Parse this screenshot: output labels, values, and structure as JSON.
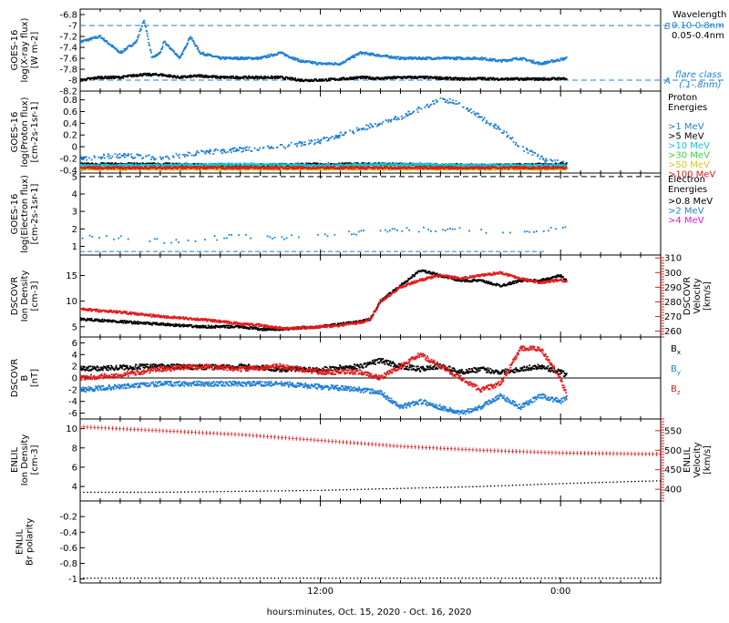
{
  "colors": {
    "black": "#000000",
    "blue": "#1f7fd6",
    "cyan": "#19c3d6",
    "green": "#3ccf3c",
    "yellow": "#d6c81a",
    "orange": "#f28a1a",
    "red": "#e21a1a",
    "magenta": "#d61ad6"
  },
  "x_axis": {
    "label": "hours:minutes, Oct. 15, 2020 - Oct. 16, 2020",
    "ticks": [
      {
        "t": 12,
        "label": "12:00"
      },
      {
        "t": 24,
        "label": "0:00"
      }
    ]
  },
  "chart_data": [
    {
      "id": "xray",
      "type": "line",
      "ylabel": [
        "GOES-16",
        "log(X-ray flux)",
        "[W m-2]"
      ],
      "ylim": [
        -8.2,
        -6.7
      ],
      "yticks": [
        -8.2,
        -8.0,
        -7.8,
        -7.6,
        -7.4,
        -7.2,
        -7.0,
        -6.8
      ],
      "legend_title": "Wavelength",
      "series": [
        {
          "name": "0.10-0.8nm",
          "color": "blue",
          "x": [
            0,
            1,
            2,
            2.8,
            3.2,
            3.6,
            4,
            4.2,
            5,
            5.5,
            6,
            7,
            8,
            9,
            10,
            11,
            12,
            13,
            14,
            15,
            16,
            17,
            18,
            19,
            20,
            21,
            22,
            23,
            24.3
          ],
          "y": [
            -7.3,
            -7.2,
            -7.5,
            -7.3,
            -6.9,
            -7.6,
            -7.5,
            -7.3,
            -7.6,
            -7.2,
            -7.5,
            -7.6,
            -7.6,
            -7.6,
            -7.5,
            -7.65,
            -7.7,
            -7.7,
            -7.5,
            -7.55,
            -7.6,
            -7.6,
            -7.6,
            -7.6,
            -7.6,
            -7.65,
            -7.6,
            -7.7,
            -7.6
          ]
        },
        {
          "name": "0.05-0.4nm",
          "color": "black",
          "x": [
            0,
            1,
            2,
            3,
            4,
            5,
            6,
            7,
            8,
            9,
            10,
            11,
            12,
            13,
            14,
            15,
            16,
            17,
            18,
            19,
            20,
            21,
            22,
            23,
            24.3
          ],
          "y": [
            -8.0,
            -7.95,
            -7.95,
            -7.9,
            -7.9,
            -7.95,
            -7.92,
            -7.95,
            -7.95,
            -7.95,
            -7.95,
            -8.0,
            -8.0,
            -7.98,
            -7.95,
            -7.97,
            -7.95,
            -7.95,
            -7.96,
            -7.98,
            -7.97,
            -7.98,
            -7.98,
            -7.98,
            -7.97
          ]
        }
      ],
      "ref_lines": [
        {
          "y": -7.0,
          "letter": "B",
          "color": "blue"
        },
        {
          "y": -8.0,
          "letter": "A",
          "color": "blue"
        }
      ],
      "extra_legend": [
        "flare class",
        "(.1-.8nm)"
      ]
    },
    {
      "id": "proton",
      "type": "scatter",
      "ylabel": [
        "GOES-16",
        "log(Proton flux)",
        "[cm-2s-1sr-1]"
      ],
      "ylim": [
        -0.45,
        0.95
      ],
      "yticks": [
        -0.4,
        -0.2,
        0.0,
        0.2,
        0.4,
        0.6,
        0.8
      ],
      "legend_title": [
        "Proton",
        "Energies"
      ],
      "series": [
        {
          "name": ">1 MeV",
          "color": "blue",
          "x": [
            0,
            2,
            4,
            6,
            8,
            10,
            12,
            13,
            14,
            15,
            16,
            17,
            18,
            19,
            20,
            21,
            22,
            23,
            24.3
          ],
          "y": [
            -0.2,
            -0.15,
            -0.2,
            -0.1,
            -0.05,
            0.0,
            0.1,
            0.2,
            0.3,
            0.4,
            0.5,
            0.65,
            0.8,
            0.75,
            0.5,
            0.3,
            0.0,
            -0.2,
            -0.3
          ]
        },
        {
          "name": ">5 MeV",
          "color": "black",
          "x": [
            0,
            4,
            8,
            12,
            16,
            20,
            24.3
          ],
          "y": [
            -0.3,
            -0.3,
            -0.32,
            -0.3,
            -0.3,
            -0.32,
            -0.3
          ]
        },
        {
          "name": ">10 MeV",
          "color": "cyan",
          "x": [
            0,
            4,
            8,
            12,
            16,
            20,
            24.3
          ],
          "y": [
            -0.32,
            -0.32,
            -0.3,
            -0.32,
            -0.3,
            -0.32,
            -0.32
          ]
        },
        {
          "name": ">30 MeV",
          "color": "green",
          "x": [
            0,
            4,
            8,
            12,
            16,
            20,
            24.3
          ],
          "y": [
            -0.37,
            -0.37,
            -0.37,
            -0.37,
            -0.37,
            -0.37,
            -0.37
          ]
        },
        {
          "name": ">50 MeV",
          "color": "yellow",
          "x": [
            0,
            4,
            8,
            12,
            16,
            20,
            24.3
          ],
          "y": [
            -0.38,
            -0.38,
            -0.38,
            -0.38,
            -0.38,
            -0.38,
            -0.38
          ]
        },
        {
          "name": ">100 MeV",
          "color": "red",
          "x": [
            0,
            4,
            8,
            12,
            16,
            20,
            24.3
          ],
          "y": [
            -0.36,
            -0.36,
            -0.36,
            -0.36,
            -0.36,
            -0.36,
            -0.36
          ]
        }
      ]
    },
    {
      "id": "electron",
      "type": "scatter",
      "ylabel": [
        "GOES-16",
        "log(Electron flux)",
        "[cm-2s-1sr-1]"
      ],
      "ylim": [
        0.5,
        5.2
      ],
      "yticks": [
        1,
        2,
        3,
        4,
        5
      ],
      "legend_title": [
        "Electron",
        "Energies"
      ],
      "series": [
        {
          "name": ">0.8 MeV",
          "color": "black",
          "x": [
            0,
            29
          ],
          "y": [
            5.0,
            5.0
          ]
        },
        {
          "name": ">2 MeV",
          "color": "blue",
          "x": [
            0,
            2,
            4,
            6,
            8,
            10,
            12,
            14,
            16,
            18,
            20,
            22,
            24.3
          ],
          "y": [
            1.6,
            1.5,
            1.3,
            1.4,
            1.6,
            1.5,
            1.7,
            1.8,
            1.9,
            2.0,
            1.9,
            1.8,
            2.0
          ]
        },
        {
          "name": ">4 MeV",
          "color": "magenta",
          "x": [],
          "y": []
        }
      ],
      "baseline": {
        "y": 0.7,
        "color": "blue"
      }
    },
    {
      "id": "dscovr_plasma",
      "type": "line",
      "ylabel": [
        "DSCOVR",
        "Ion Density",
        "[cm-3]"
      ],
      "ylim": [
        3,
        19
      ],
      "yticks": [
        5,
        10,
        15
      ],
      "y2label": [
        "DSCOVR",
        "Velocity",
        "[km/s]"
      ],
      "y2lim": [
        256,
        312
      ],
      "y2ticks": [
        260,
        270,
        280,
        290,
        300,
        310
      ],
      "series": [
        {
          "name": "Density",
          "color": "black",
          "axis": "left",
          "x": [
            0,
            2,
            4,
            6,
            8,
            9,
            10,
            11,
            12,
            13,
            14,
            14.5,
            15,
            16,
            17,
            18,
            19,
            20,
            21,
            22,
            23,
            24,
            24.3
          ],
          "y": [
            6.5,
            6.0,
            5.5,
            5.0,
            5.0,
            4.5,
            4.5,
            4.8,
            5.0,
            5.5,
            6.0,
            6.5,
            10,
            13,
            16,
            15,
            14,
            14,
            13,
            14,
            14,
            15,
            14
          ]
        },
        {
          "name": "Velocity",
          "color": "red",
          "axis": "right",
          "x": [
            0,
            2,
            4,
            6,
            8,
            9,
            10,
            11,
            12,
            13,
            14,
            14.5,
            15,
            16,
            17,
            18,
            19,
            20,
            21,
            22,
            23,
            24,
            24.3
          ],
          "y": [
            275,
            273,
            270,
            268,
            265,
            264,
            262,
            262,
            263,
            264,
            266,
            268,
            280,
            290,
            295,
            298,
            296,
            298,
            300,
            296,
            293,
            295,
            294
          ]
        }
      ]
    },
    {
      "id": "dscovr_mag",
      "type": "line",
      "ylabel": [
        "DSCOVR",
        "B",
        "[nT]"
      ],
      "ylim": [
        -7,
        7
      ],
      "yticks": [
        -6,
        -4,
        -2,
        0,
        2,
        4,
        6
      ],
      "zero_line": true,
      "series": [
        {
          "name": "Bx",
          "color": "black",
          "x": [
            0,
            2,
            4,
            6,
            8,
            10,
            12,
            14,
            15,
            16,
            17,
            18,
            19,
            20,
            21,
            22,
            23,
            24,
            24.3
          ],
          "y": [
            1.5,
            1.8,
            2.0,
            1.8,
            2.0,
            1.5,
            1.5,
            2.0,
            3.0,
            2.0,
            1.5,
            2.0,
            1.0,
            1.5,
            1.0,
            1.5,
            2.0,
            1.0,
            0.5
          ]
        },
        {
          "name": "By",
          "color": "blue",
          "x": [
            0,
            2,
            4,
            6,
            8,
            10,
            12,
            14,
            15,
            16,
            17,
            18,
            19,
            20,
            21,
            22,
            23,
            24,
            24.3
          ],
          "y": [
            -2.0,
            -1.5,
            -1.0,
            -1.0,
            -1.0,
            -1.0,
            -1.5,
            -2.0,
            -2.5,
            -5.0,
            -4.0,
            -5.0,
            -6.0,
            -5.0,
            -3.0,
            -5.0,
            -3.0,
            -4.0,
            -3.5
          ]
        },
        {
          "name": "Bz",
          "color": "red",
          "x": [
            0,
            2,
            4,
            6,
            8,
            10,
            12,
            14,
            15,
            16,
            17,
            18,
            19,
            20,
            21,
            22,
            23,
            24,
            24.3
          ],
          "y": [
            0.0,
            0.5,
            1.5,
            2.0,
            1.5,
            2.0,
            1.0,
            1.0,
            0.0,
            2.0,
            4.0,
            2.0,
            0.0,
            -2.0,
            -1.0,
            5.0,
            5.0,
            0.0,
            -3.0
          ]
        }
      ],
      "legend": [
        {
          "text": "B",
          "sub": "x",
          "color": "black"
        },
        {
          "text": "B",
          "sub": "y",
          "color": "blue"
        },
        {
          "text": "B",
          "sub": "z",
          "color": "red"
        }
      ]
    },
    {
      "id": "enlil_plasma",
      "type": "line",
      "ylabel": [
        "ENLIL",
        "Ion Density",
        "[cm-3]"
      ],
      "ylim": [
        2.5,
        11
      ],
      "yticks": [
        4,
        6,
        8,
        10
      ],
      "y2label": [
        "ENLIL",
        "Velocity",
        "[km/s]"
      ],
      "y2lim": [
        370,
        580
      ],
      "y2ticks": [
        400,
        450,
        500,
        550
      ],
      "series": [
        {
          "name": "Density",
          "color": "black",
          "axis": "left",
          "x": [
            0,
            4,
            8,
            12,
            16,
            20,
            24,
            29
          ],
          "y": [
            3.4,
            3.4,
            3.5,
            3.6,
            3.8,
            4.0,
            4.3,
            4.6
          ]
        },
        {
          "name": "Velocity",
          "color": "red",
          "axis": "right",
          "x": [
            0,
            4,
            8,
            12,
            16,
            20,
            24,
            29
          ],
          "y": [
            560,
            550,
            540,
            525,
            510,
            500,
            493,
            490
          ]
        }
      ]
    },
    {
      "id": "enlil_polarity",
      "type": "line",
      "ylabel": [
        "ENLIL",
        "Br polarity"
      ],
      "ylim": [
        -1.05,
        0.0
      ],
      "yticks": [
        -1.0,
        -0.8,
        -0.6,
        -0.4,
        -0.2
      ],
      "series": [
        {
          "name": "Polarity",
          "color": "black",
          "x": [
            0,
            29
          ],
          "y": [
            -0.99,
            -0.99
          ]
        }
      ]
    }
  ]
}
